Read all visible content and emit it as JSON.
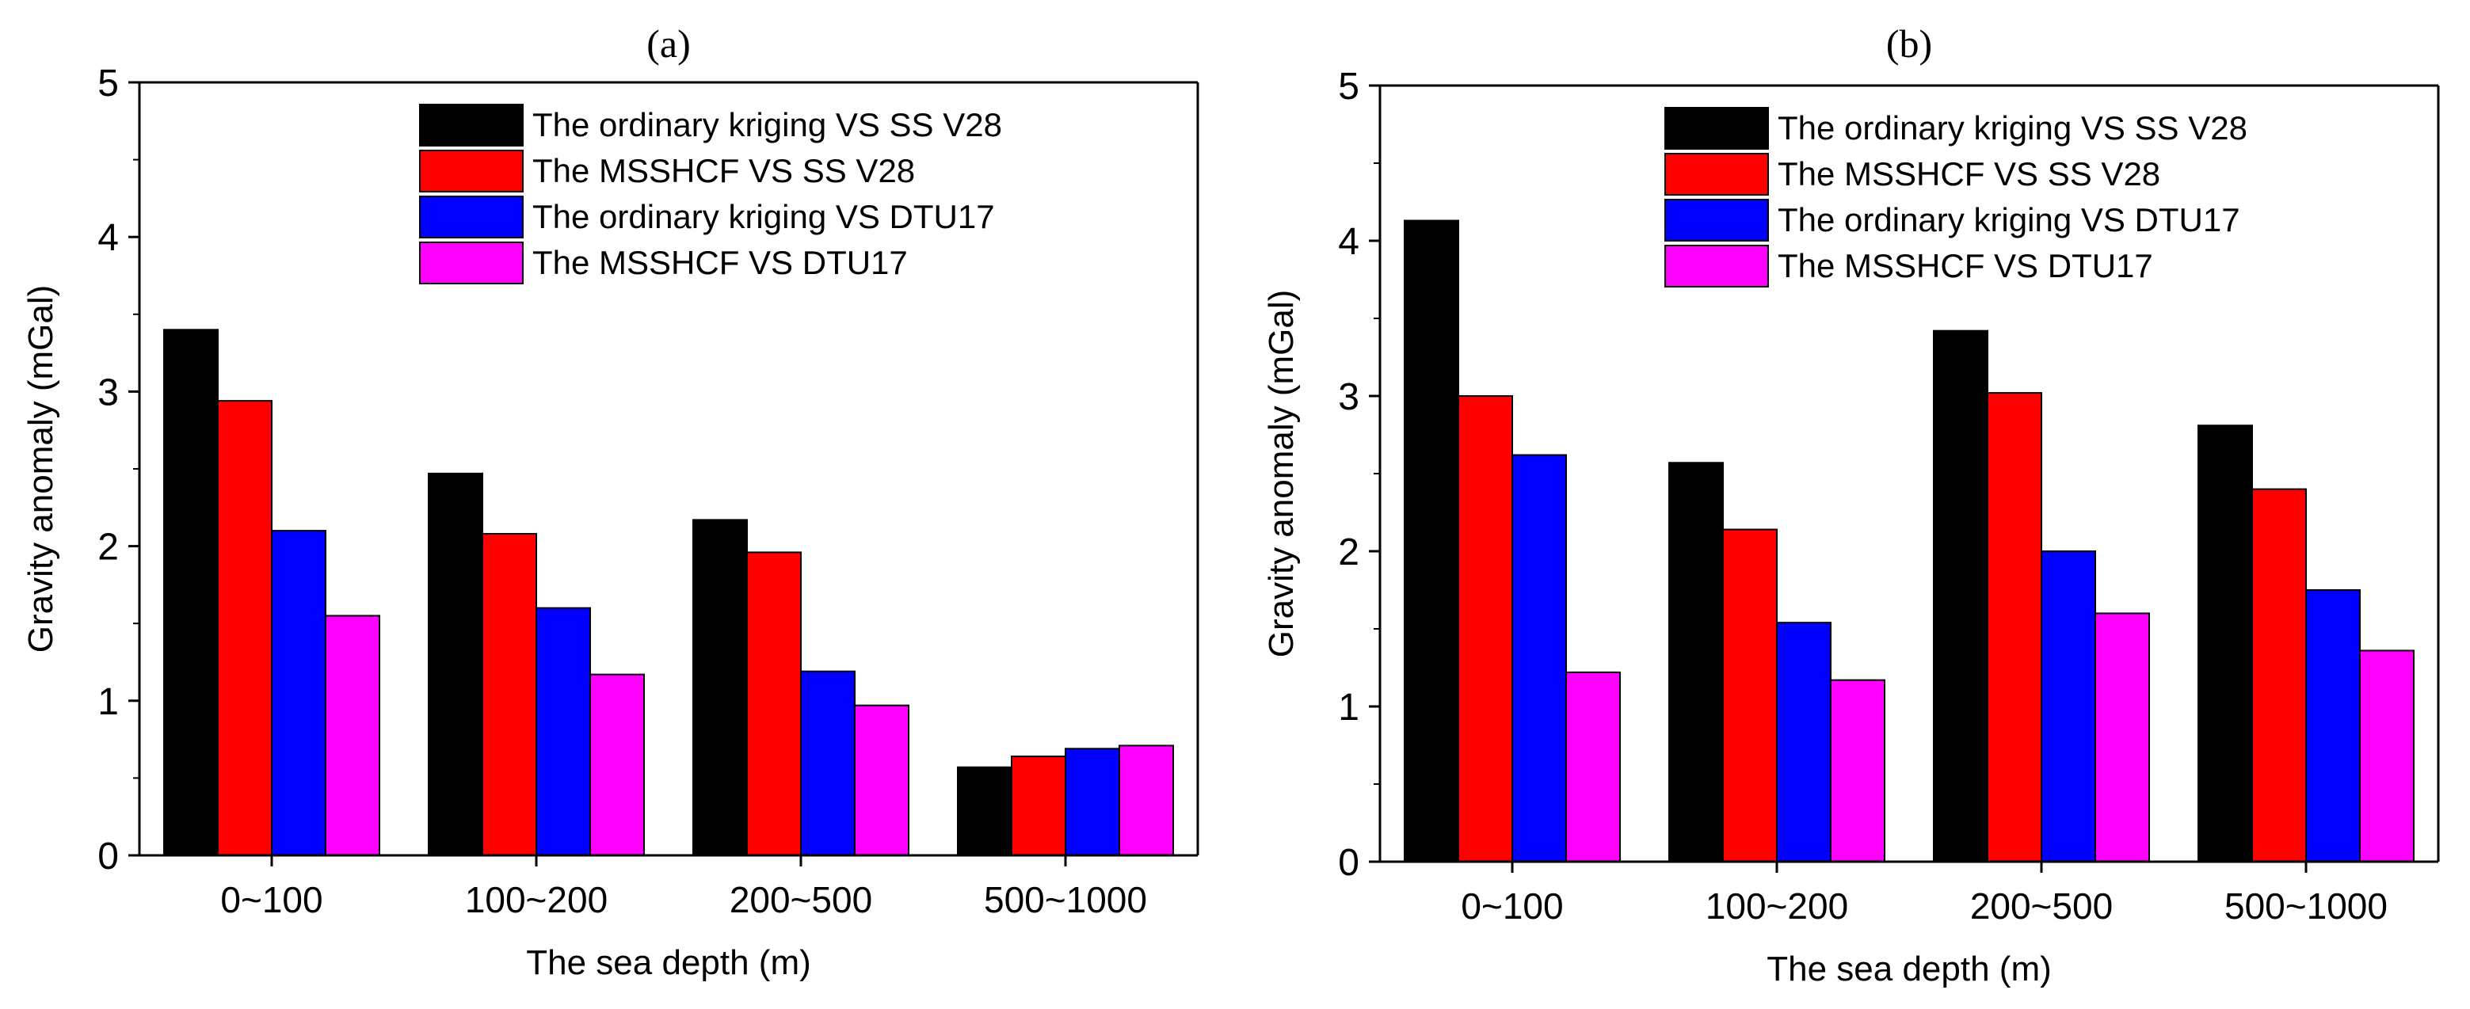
{
  "colors": {
    "series": [
      "#000000",
      "#ff0000",
      "#0000ff",
      "#ff00ff"
    ],
    "axis": "#000000",
    "bar_stroke": "#000000"
  },
  "chart_data": [
    {
      "type": "bar",
      "panel_label": "(a)",
      "xlabel": "The sea depth (m)",
      "ylabel": "Gravity anomaly (mGal)",
      "ylim": [
        0,
        5
      ],
      "yticks": [
        "0",
        "1",
        "2",
        "3",
        "4",
        "5"
      ],
      "legend_position": "top-right",
      "categories": [
        "0~100",
        "100~200",
        "200~500",
        "500~1000"
      ],
      "series": [
        {
          "name": "The ordinary kriging VS SS V28",
          "values": [
            3.4,
            2.47,
            2.17,
            0.57
          ]
        },
        {
          "name": "The MSSHCF VS SS V28",
          "values": [
            2.94,
            2.08,
            1.96,
            0.64
          ]
        },
        {
          "name": "The ordinary kriging VS DTU17",
          "values": [
            2.1,
            1.6,
            1.19,
            0.69
          ]
        },
        {
          "name": "The MSSHCF VS DTU17",
          "values": [
            1.55,
            1.17,
            0.97,
            0.71
          ]
        }
      ]
    },
    {
      "type": "bar",
      "panel_label": "(b)",
      "xlabel": "The sea depth (m)",
      "ylabel": "Gravity anomaly (mGal)",
      "ylim": [
        0,
        5
      ],
      "yticks": [
        "0",
        "1",
        "2",
        "3",
        "4",
        "5"
      ],
      "legend_position": "top-right",
      "categories": [
        "0~100",
        "100~200",
        "200~500",
        "500~1000"
      ],
      "series": [
        {
          "name": "The ordinary kriging VS SS V28",
          "values": [
            4.13,
            2.57,
            3.42,
            2.81
          ]
        },
        {
          "name": "The MSSHCF VS SS V28",
          "values": [
            3.0,
            2.14,
            3.02,
            2.4
          ]
        },
        {
          "name": "The ordinary kriging VS DTU17",
          "values": [
            2.62,
            1.54,
            2.0,
            1.75
          ]
        },
        {
          "name": "The MSSHCF VS DTU17",
          "values": [
            1.22,
            1.17,
            1.6,
            1.36
          ]
        }
      ]
    }
  ]
}
